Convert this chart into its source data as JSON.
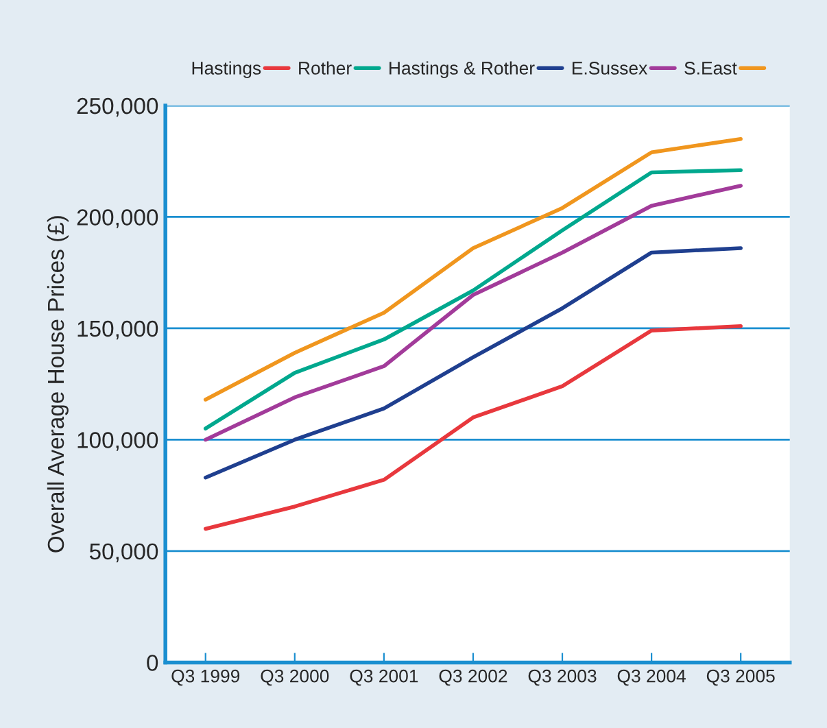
{
  "chart_data": {
    "type": "line",
    "ylabel": "Overall Average House Prices (£)",
    "categories": [
      "Q3 1999",
      "Q3 2000",
      "Q3 2001",
      "Q3 2002",
      "Q3 2003",
      "Q3 2004",
      "Q3 2005"
    ],
    "series": [
      {
        "name": "Hastings",
        "color": "#e8383d",
        "values": [
          60000,
          70000,
          82000,
          110000,
          124000,
          149000,
          151000
        ]
      },
      {
        "name": "Rother",
        "color": "#00a88e",
        "values": [
          105000,
          130000,
          145000,
          167000,
          194000,
          220000,
          221000
        ]
      },
      {
        "name": "Hastings & Rother",
        "color": "#1f3f8f",
        "values": [
          83000,
          100000,
          114000,
          137000,
          159000,
          184000,
          186000
        ]
      },
      {
        "name": "E.Sussex",
        "color": "#a23b9a",
        "values": [
          100000,
          119000,
          133000,
          165000,
          184000,
          205000,
          214000
        ]
      },
      {
        "name": "S.East",
        "color": "#f0961e",
        "values": [
          118000,
          139000,
          157000,
          186000,
          204000,
          229000,
          235000
        ]
      }
    ],
    "ylim": [
      0,
      250000
    ],
    "yticks": [
      {
        "value": 0,
        "label": "0"
      },
      {
        "value": 50000,
        "label": "50,000"
      },
      {
        "value": 100000,
        "label": "100,000"
      },
      {
        "value": 150000,
        "label": "150,000"
      },
      {
        "value": 200000,
        "label": "200,000"
      },
      {
        "value": 250000,
        "label": "250,000"
      }
    ],
    "grid": "y",
    "legend": "top",
    "marker": "none",
    "line_style": "solid"
  }
}
